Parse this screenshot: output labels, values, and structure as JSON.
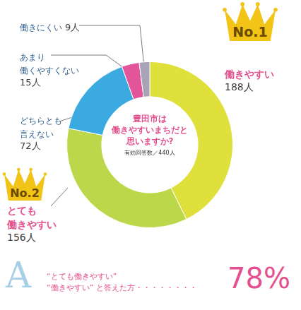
{
  "chart_data": {
    "type": "doughnut",
    "title": "豊田市は\n働きやすいまちだと\n思いますか?",
    "subtitle": "有効回答数／440人",
    "categories": [
      "働きやすい",
      "とても\n働きやすい",
      "どちらとも\n言えない",
      "あまり\n働くやすくない",
      "働きにくい"
    ],
    "values": [
      188,
      156,
      72,
      15,
      9
    ],
    "value_labels": [
      "188人",
      "156人",
      "72人",
      "15人",
      "9人"
    ],
    "colors": [
      "#dfe03c",
      "#bcd84a",
      "#3aaae0",
      "#e2559a",
      "#a9a3b8"
    ],
    "data_labels": true,
    "legend": false,
    "annotations": [
      {
        "category": "働きやすい",
        "label": "No.1"
      },
      {
        "category": "とても\n働きやすい",
        "label": "No.2"
      }
    ],
    "summary": {
      "letter": "A",
      "text": "“とても働きやすい”\n“働きやすい” と答えた方・・・・・・・・",
      "value": 78,
      "value_label": "78%"
    }
  }
}
